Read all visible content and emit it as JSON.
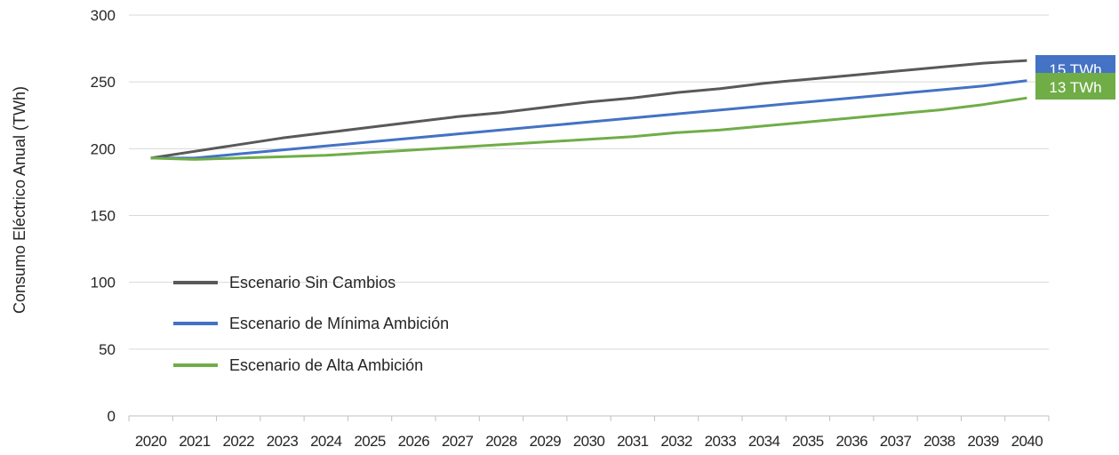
{
  "chart_data": {
    "type": "line",
    "ylabel": "Consumo Eléctrico Anual (TWh)",
    "xlabel": "",
    "ylim": [
      0,
      300
    ],
    "yticks": [
      0,
      50,
      100,
      150,
      200,
      250,
      300
    ],
    "grid": true,
    "legend_position": "left-center",
    "x": [
      "2020",
      "2021",
      "2022",
      "2023",
      "2024",
      "2025",
      "2026",
      "2027",
      "2028",
      "2029",
      "2030",
      "2031",
      "2032",
      "2033",
      "2034",
      "2035",
      "2036",
      "2037",
      "2038",
      "2039",
      "2040"
    ],
    "series": [
      {
        "name": "Escenario Sin Cambios",
        "color": "#595959",
        "values": [
          193,
          198,
          203,
          208,
          212,
          216,
          220,
          224,
          227,
          231,
          235,
          238,
          242,
          245,
          249,
          252,
          255,
          258,
          261,
          264,
          266
        ]
      },
      {
        "name": "Escenario de Mínima Ambición",
        "color": "#4472c4",
        "values": [
          193,
          193,
          196,
          199,
          202,
          205,
          208,
          211,
          214,
          217,
          220,
          223,
          226,
          229,
          232,
          235,
          238,
          241,
          244,
          247,
          251
        ]
      },
      {
        "name": "Escenario de Alta Ambición",
        "color": "#70ad47",
        "values": [
          193,
          192,
          193,
          194,
          195,
          197,
          199,
          201,
          203,
          205,
          207,
          209,
          212,
          214,
          217,
          220,
          223,
          226,
          229,
          233,
          238
        ]
      }
    ],
    "annotations": [
      {
        "label": "15 TWh",
        "from": 266,
        "to": 251,
        "color": "#4472c4"
      },
      {
        "label": "13 TWh",
        "from": 251,
        "to": 238,
        "color": "#70ad47"
      }
    ]
  }
}
